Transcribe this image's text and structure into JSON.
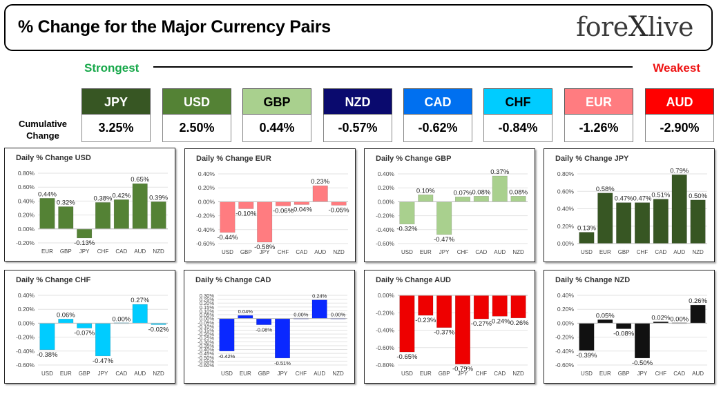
{
  "header": {
    "title": "% Change for the Major Currency Pairs",
    "logo_left": "fore",
    "logo_x": "X",
    "logo_right": "live"
  },
  "scale": {
    "strongest_label": "Strongest",
    "weakest_label": "Weakest"
  },
  "cumulative": {
    "label_line1": "Cumulative",
    "label_line2": "Change",
    "items": [
      {
        "currency": "JPY",
        "value": "3.25%",
        "color": "#375623",
        "text_color": "#ffffff"
      },
      {
        "currency": "USD",
        "value": "2.50%",
        "color": "#548235",
        "text_color": "#ffffff"
      },
      {
        "currency": "GBP",
        "value": "0.44%",
        "color": "#a9d08e",
        "text_color": "#000000"
      },
      {
        "currency": "NZD",
        "value": "-0.57%",
        "color": "#0a0a6e",
        "text_color": "#ffffff"
      },
      {
        "currency": "CAD",
        "value": "-0.62%",
        "color": "#0070f0",
        "text_color": "#ffffff"
      },
      {
        "currency": "CHF",
        "value": "-0.84%",
        "color": "#00ccff",
        "text_color": "#000000"
      },
      {
        "currency": "EUR",
        "value": "-1.26%",
        "color": "#ff7c80",
        "text_color": "#ffffff"
      },
      {
        "currency": "AUD",
        "value": "-2.90%",
        "color": "#ff0000",
        "text_color": "#ffffff"
      }
    ]
  },
  "chart_data": [
    {
      "type": "bar",
      "title": "Daily % Change USD",
      "bar_color": "#548235",
      "categories": [
        "EUR",
        "GBP",
        "JPY",
        "CHF",
        "CAD",
        "AUD",
        "NZD"
      ],
      "values": [
        0.44,
        0.32,
        -0.13,
        0.38,
        0.42,
        0.65,
        0.39
      ],
      "labels": [
        "0.44%",
        "0.32%",
        "-0.13%",
        "0.38%",
        "0.42%",
        "0.65%",
        "0.39%"
      ],
      "ticks": [
        0.8,
        0.6,
        0.4,
        0.2,
        0.0,
        -0.2
      ],
      "tick_labels": [
        "0.80%",
        "0.60%",
        "0.40%",
        "0.20%",
        "0.00%",
        "-0.20%"
      ],
      "ylim": [
        -0.2,
        0.8
      ]
    },
    {
      "type": "bar",
      "title": "Daily % Change EUR",
      "bar_color": "#ff7c80",
      "categories": [
        "USD",
        "GBP",
        "JPY",
        "CHF",
        "CAD",
        "AUD",
        "NZD"
      ],
      "values": [
        -0.44,
        -0.1,
        -0.58,
        -0.06,
        -0.04,
        0.23,
        -0.05
      ],
      "labels": [
        "-0.44%",
        "-0.10%",
        "-0.58%",
        "-0.06%",
        "-0.04%",
        "0.23%",
        "-0.05%"
      ],
      "ticks": [
        0.4,
        0.2,
        0.0,
        -0.2,
        -0.4,
        -0.6
      ],
      "tick_labels": [
        "0.40%",
        "0.20%",
        "0.00%",
        "-0.20%",
        "-0.40%",
        "-0.60%"
      ],
      "ylim": [
        -0.6,
        0.4
      ]
    },
    {
      "type": "bar",
      "title": "Daily % Change GBP",
      "bar_color": "#a9d08e",
      "categories": [
        "USD",
        "EUR",
        "JPY",
        "CHF",
        "CAD",
        "AUD",
        "NZD"
      ],
      "values": [
        -0.32,
        0.1,
        -0.47,
        0.07,
        0.08,
        0.37,
        0.08
      ],
      "labels": [
        "-0.32%",
        "0.10%",
        "-0.47%",
        "0.07%",
        "0.08%",
        "0.37%",
        "0.08%"
      ],
      "ticks": [
        0.4,
        0.2,
        0.0,
        -0.2,
        -0.4,
        -0.6
      ],
      "tick_labels": [
        "0.40%",
        "0.20%",
        "0.00%",
        "-0.20%",
        "-0.40%",
        "-0.60%"
      ],
      "ylim": [
        -0.6,
        0.4
      ]
    },
    {
      "type": "bar",
      "title": "Daily % Change JPY",
      "bar_color": "#375623",
      "categories": [
        "USD",
        "EUR",
        "GBP",
        "CHF",
        "CAD",
        "AUD",
        "NZD"
      ],
      "values": [
        0.13,
        0.58,
        0.47,
        0.47,
        0.51,
        0.79,
        0.5
      ],
      "labels": [
        "0.13%",
        "0.58%",
        "0.47%",
        "0.47%",
        "0.51%",
        "0.79%",
        "0.50%"
      ],
      "ticks": [
        0.8,
        0.6,
        0.4,
        0.2,
        0.0
      ],
      "tick_labels": [
        "0.80%",
        "0.60%",
        "0.40%",
        "0.20%",
        "0.00%"
      ],
      "ylim": [
        0,
        0.8
      ]
    },
    {
      "type": "bar",
      "title": "Daily % Change CHF",
      "bar_color": "#00ccff",
      "categories": [
        "USD",
        "EUR",
        "GBP",
        "JPY",
        "CAD",
        "AUD",
        "NZD"
      ],
      "values": [
        -0.38,
        0.06,
        -0.07,
        -0.47,
        0.0,
        0.27,
        -0.02
      ],
      "labels": [
        "-0.38%",
        "0.06%",
        "-0.07%",
        "-0.47%",
        "0.00%",
        "0.27%",
        "-0.02%"
      ],
      "ticks": [
        0.4,
        0.2,
        0.0,
        -0.2,
        -0.4,
        -0.6
      ],
      "tick_labels": [
        "0.40%",
        "0.20%",
        "0.00%",
        "-0.20%",
        "-0.40%",
        "-0.60%"
      ],
      "ylim": [
        -0.6,
        0.4
      ]
    },
    {
      "type": "bar",
      "title": "Daily % Change CAD",
      "bar_color": "#0a28ff",
      "categories": [
        "USD",
        "EUR",
        "GBP",
        "JPY",
        "CHF",
        "AUD",
        "NZD"
      ],
      "values": [
        -0.42,
        0.04,
        -0.08,
        -0.51,
        0.0,
        0.24,
        0.0
      ],
      "labels": [
        "-0.42%",
        "0.04%",
        "-0.08%",
        "-0.51%",
        "0.00%",
        "0.24%",
        "0.00%"
      ],
      "ticks": [
        0.3,
        0.25,
        0.2,
        0.15,
        0.1,
        0.05,
        0.0,
        -0.05,
        -0.1,
        -0.15,
        -0.2,
        -0.25,
        -0.3,
        -0.35,
        -0.4,
        -0.45,
        -0.5,
        -0.55,
        -0.6
      ],
      "tick_labels": [
        "0.30%",
        "0.25%",
        "0.20%",
        "0.15%",
        "0.10%",
        "0.05%",
        "0.00%",
        "-0.05%",
        "-0.10%",
        "-0.15%",
        "-0.20%",
        "-0.25%",
        "-0.30%",
        "-0.35%",
        "-0.40%",
        "-0.45%",
        "-0.50%",
        "-0.55%",
        "-0.60%"
      ],
      "ylim": [
        -0.6,
        0.3
      ]
    },
    {
      "type": "bar",
      "title": "Daily % Change AUD",
      "bar_color": "#ee0000",
      "categories": [
        "USD",
        "EUR",
        "GBP",
        "JPY",
        "CHF",
        "CAD",
        "NZD"
      ],
      "values": [
        -0.65,
        -0.23,
        -0.37,
        -0.79,
        -0.27,
        -0.24,
        -0.26
      ],
      "labels": [
        "-0.65%",
        "-0.23%",
        "-0.37%",
        "-0.79%",
        "-0.27%",
        "-0.24%",
        "-0.26%"
      ],
      "ticks": [
        0.0,
        -0.2,
        -0.4,
        -0.6,
        -0.8
      ],
      "tick_labels": [
        "0.00%",
        "-0.20%",
        "-0.40%",
        "-0.60%",
        "-0.80%"
      ],
      "ylim": [
        -0.8,
        0
      ]
    },
    {
      "type": "bar",
      "title": "Daily % Change NZD",
      "bar_color": "#111111",
      "categories": [
        "USD",
        "EUR",
        "GBP",
        "JPY",
        "CHF",
        "CAD",
        "AUD"
      ],
      "values": [
        -0.39,
        0.05,
        -0.08,
        -0.5,
        0.02,
        0.0,
        0.26
      ],
      "labels": [
        "-0.39%",
        "0.05%",
        "-0.08%",
        "-0.50%",
        "0.02%",
        "0.00%",
        "0.26%"
      ],
      "ticks": [
        0.4,
        0.2,
        0.0,
        -0.2,
        -0.4,
        -0.6
      ],
      "tick_labels": [
        "0.40%",
        "0.20%",
        "0.00%",
        "-0.20%",
        "-0.40%",
        "-0.60%"
      ],
      "ylim": [
        -0.6,
        0.4
      ]
    }
  ]
}
